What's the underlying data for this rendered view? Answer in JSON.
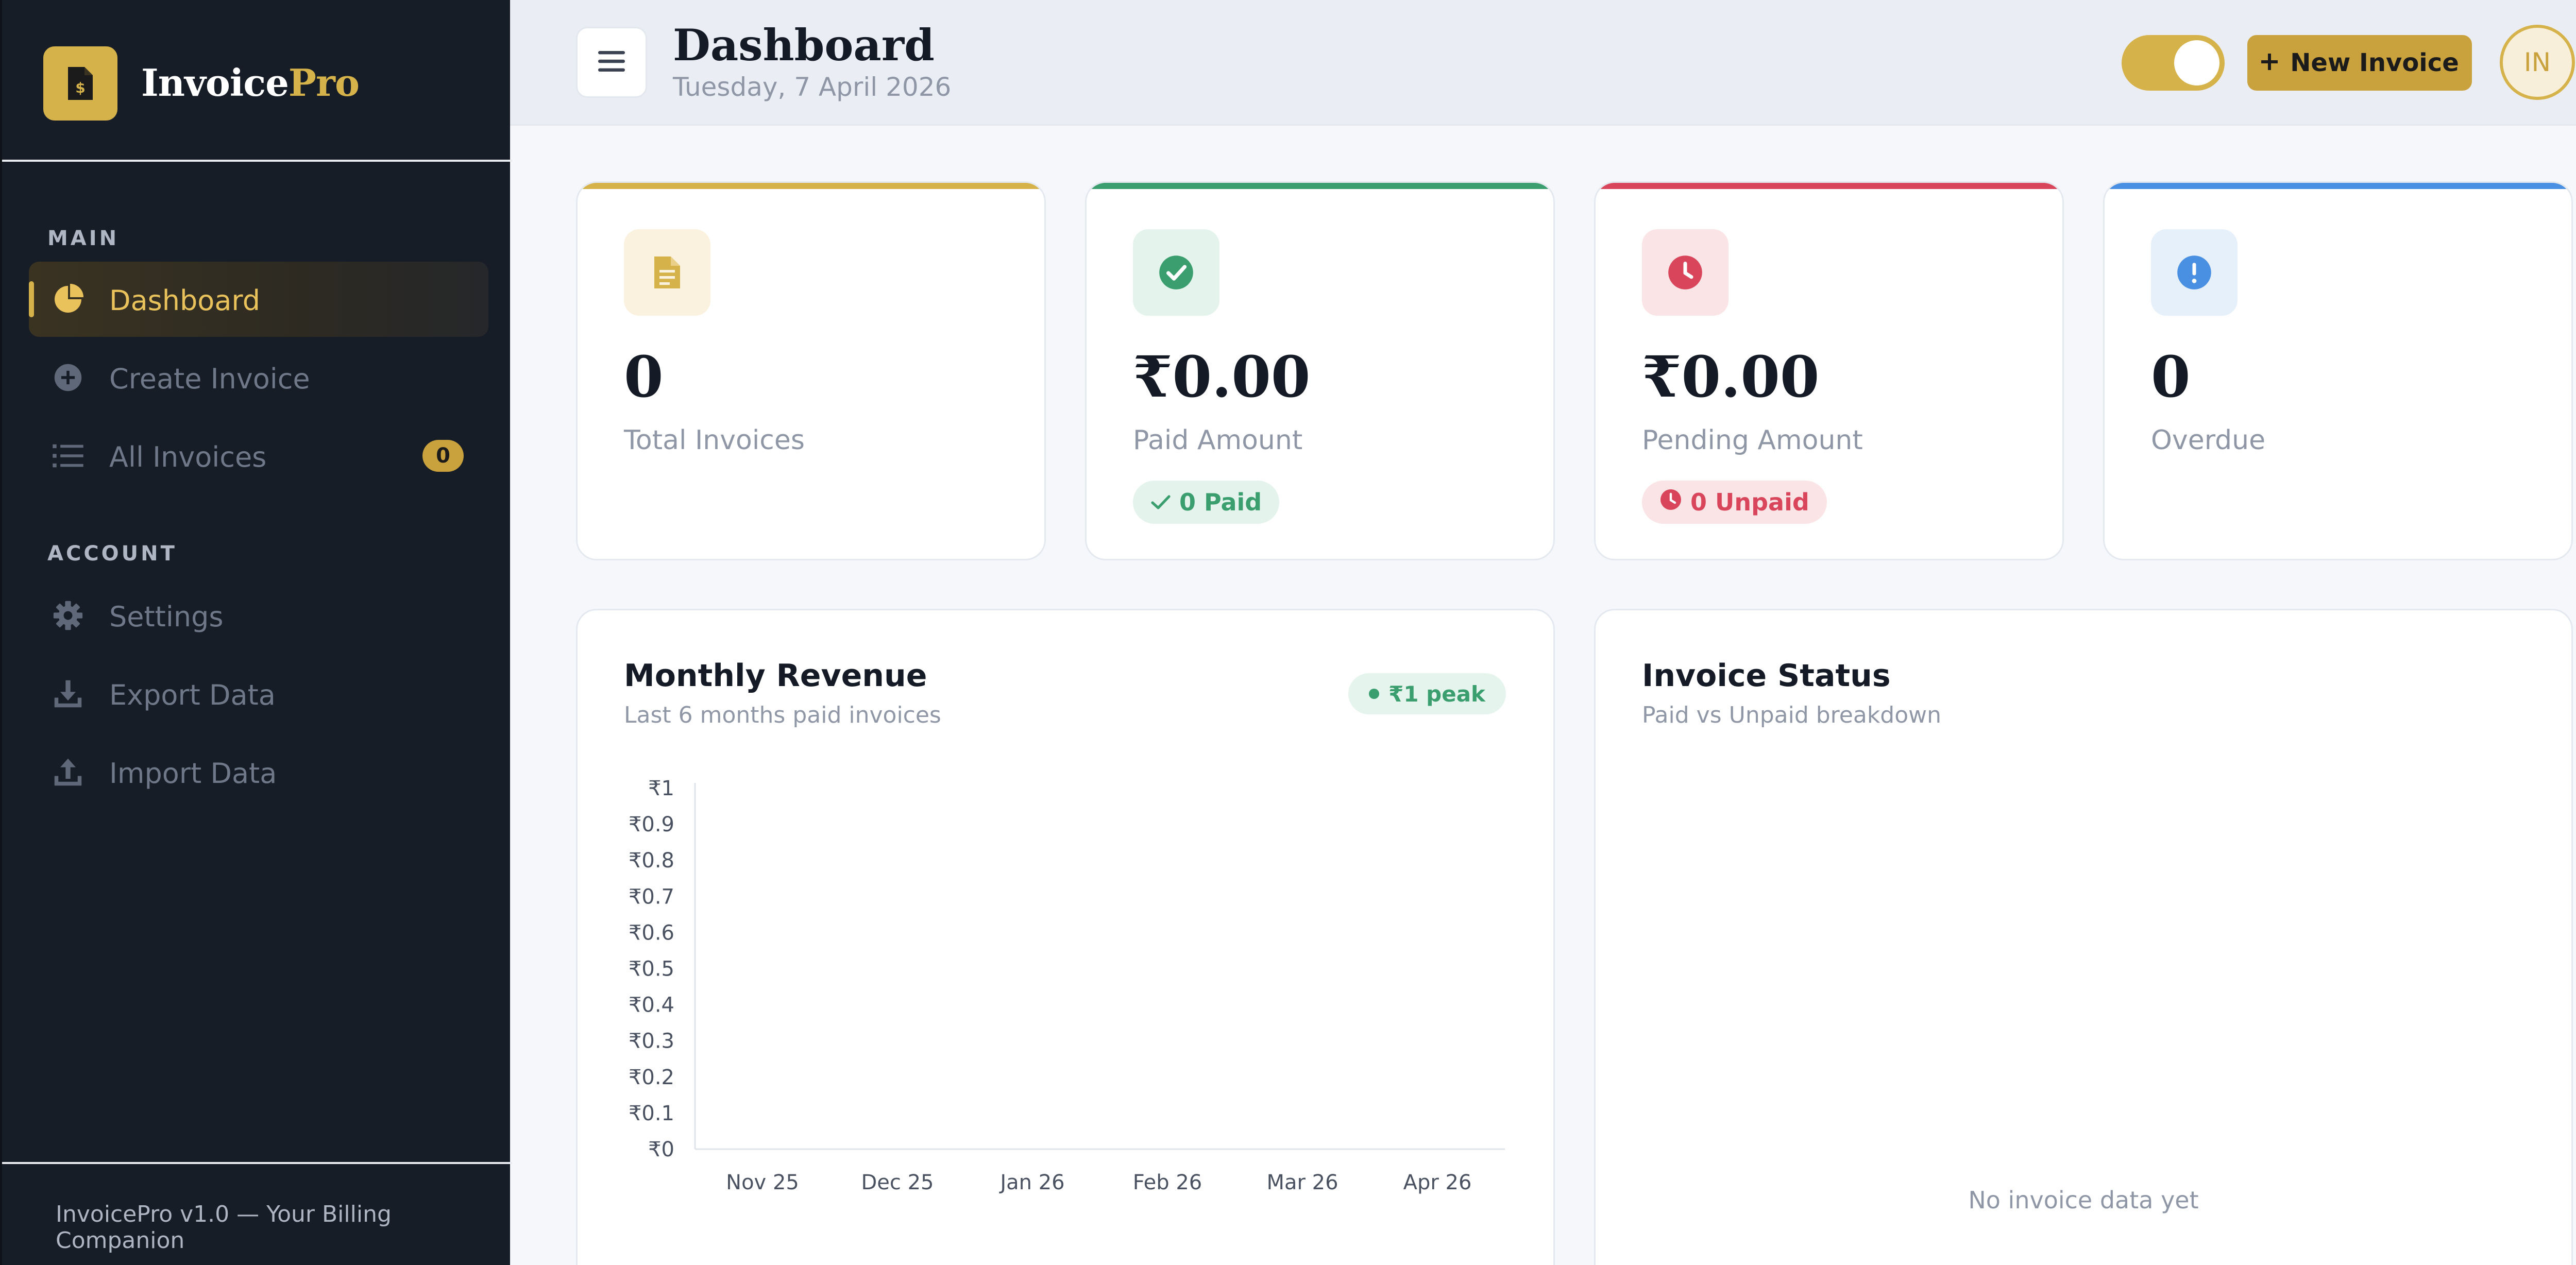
{
  "brand": {
    "name_main": "Invoice",
    "name_accent": "Pro"
  },
  "sidebar": {
    "sections": [
      {
        "label": "MAIN"
      },
      {
        "label": "ACCOUNT"
      }
    ],
    "items": [
      {
        "label": "Dashboard",
        "icon": "pie-chart-icon",
        "active": true
      },
      {
        "label": "Create Invoice",
        "icon": "plus-circle-icon"
      },
      {
        "label": "All Invoices",
        "icon": "list-icon",
        "badge": "0"
      },
      {
        "label": "Settings",
        "icon": "gear-icon"
      },
      {
        "label": "Export Data",
        "icon": "download-icon"
      },
      {
        "label": "Import Data",
        "icon": "upload-icon"
      }
    ],
    "footer": "InvoicePro v1.0 — Your Billing Companion"
  },
  "header": {
    "title": "Dashboard",
    "date": "Tuesday, 7 April 2026",
    "theme_toggle_on": true,
    "new_invoice_label": "New Invoice",
    "avatar_initials": "IN"
  },
  "stats": [
    {
      "value": "0",
      "label": "Total Invoices",
      "icon": "document-icon",
      "accent": "#d6b24a"
    },
    {
      "value": "₹0.00",
      "label": "Paid Amount",
      "icon": "check-circle-icon",
      "accent": "#3a9e6e",
      "pill": "0 Paid"
    },
    {
      "value": "₹0.00",
      "label": "Pending Amount",
      "icon": "clock-icon",
      "accent": "#d9455a",
      "pill": "0 Unpaid"
    },
    {
      "value": "0",
      "label": "Overdue",
      "icon": "alert-icon",
      "accent": "#4a90e2"
    }
  ],
  "revenue_panel": {
    "title": "Monthly Revenue",
    "subtitle": "Last 6 months paid invoices",
    "peak": "₹1 peak"
  },
  "status_panel": {
    "title": "Invoice Status",
    "subtitle": "Paid vs Unpaid breakdown",
    "empty_message": "No invoice data yet"
  },
  "chart_data": {
    "type": "line",
    "categories": [
      "Nov 25",
      "Dec 25",
      "Jan 26",
      "Feb 26",
      "Mar 26",
      "Apr 26"
    ],
    "values": [
      0,
      0,
      0,
      0,
      0,
      0
    ],
    "yticks": [
      "₹0",
      "₹0.1",
      "₹0.2",
      "₹0.3",
      "₹0.4",
      "₹0.5",
      "₹0.6",
      "₹0.7",
      "₹0.8",
      "₹0.9",
      "₹1"
    ],
    "ylim": [
      0,
      1
    ],
    "title": "Monthly Revenue",
    "xlabel": "",
    "ylabel": "",
    "grid": false
  }
}
